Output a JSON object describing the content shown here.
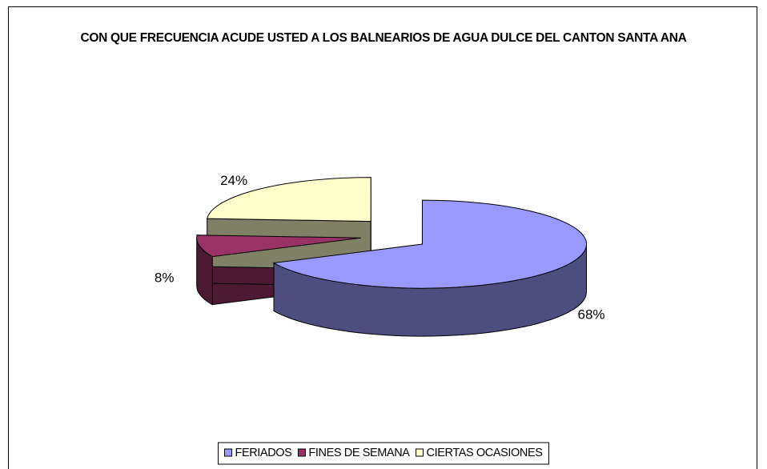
{
  "chart_data": {
    "type": "pie3d",
    "title": "CON QUE FRECUENCIA ACUDE USTED A LOS BALNEARIOS DE AGUA DULCE DEL CANTON SANTA ANA",
    "categories": [
      "FERIADOS",
      "FINES DE SEMANA",
      "CIERTAS OCASIONES"
    ],
    "values": [
      68,
      8,
      24
    ],
    "value_labels": [
      "68%",
      "8%",
      "24%"
    ],
    "colors": [
      "#9999ff",
      "#993366",
      "#ffffcc"
    ],
    "legend": "bottom"
  }
}
